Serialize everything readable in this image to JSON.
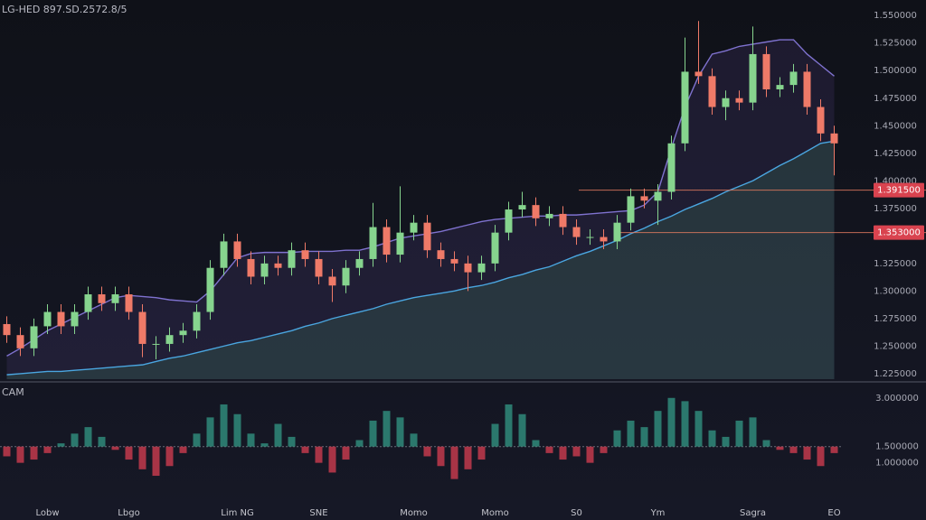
{
  "chart_data": {
    "type": "candlestick",
    "title": "LG-HED 897.SD.2572.8/5",
    "categories": [
      null,
      null,
      null,
      "Lobw",
      null,
      null,
      null,
      null,
      null,
      "Lbgo",
      null,
      null,
      null,
      null,
      null,
      null,
      null,
      "Lim NG",
      null,
      null,
      null,
      null,
      null,
      "SNE",
      null,
      null,
      null,
      null,
      null,
      null,
      "Momo",
      null,
      null,
      null,
      null,
      null,
      "Momo",
      null,
      null,
      null,
      null,
      null,
      "S0",
      null,
      null,
      null,
      null,
      null,
      "Ym",
      null,
      null,
      null,
      null,
      null,
      null,
      "Sagra",
      null,
      null,
      null,
      null,
      null,
      "EO"
    ],
    "open": [
      1.27,
      1.26,
      1.248,
      1.268,
      1.281,
      1.268,
      1.281,
      1.297,
      1.289,
      1.297,
      1.281,
      1.252,
      1.252,
      1.26,
      1.264,
      1.281,
      1.321,
      1.345,
      1.329,
      1.313,
      1.325,
      1.321,
      1.337,
      1.329,
      1.313,
      1.305,
      1.321,
      1.329,
      1.358,
      1.333,
      1.353,
      1.362,
      1.337,
      1.329,
      1.325,
      1.317,
      1.325,
      1.353,
      1.374,
      1.378,
      1.366,
      1.37,
      1.358,
      1.349,
      1.349,
      1.345,
      1.362,
      1.386,
      1.382,
      1.39,
      1.434,
      1.499,
      1.495,
      1.467,
      1.475,
      1.471,
      1.515,
      1.483,
      1.487,
      1.499,
      1.467,
      1.443
    ],
    "high": [
      1.277,
      1.267,
      1.275,
      1.288,
      1.288,
      1.288,
      1.304,
      1.304,
      1.304,
      1.304,
      1.288,
      1.259,
      1.267,
      1.271,
      1.288,
      1.328,
      1.352,
      1.352,
      1.336,
      1.332,
      1.332,
      1.344,
      1.344,
      1.336,
      1.32,
      1.328,
      1.336,
      1.38,
      1.365,
      1.395,
      1.369,
      1.369,
      1.344,
      1.336,
      1.332,
      1.332,
      1.36,
      1.381,
      1.39,
      1.385,
      1.377,
      1.377,
      1.365,
      1.356,
      1.356,
      1.369,
      1.393,
      1.393,
      1.397,
      1.441,
      1.53,
      1.545,
      1.502,
      1.482,
      1.482,
      1.54,
      1.522,
      1.494,
      1.506,
      1.506,
      1.474,
      1.45
    ],
    "low": [
      1.253,
      1.241,
      1.241,
      1.261,
      1.261,
      1.261,
      1.274,
      1.282,
      1.282,
      1.274,
      1.24,
      1.238,
      1.245,
      1.253,
      1.257,
      1.274,
      1.314,
      1.322,
      1.306,
      1.306,
      1.314,
      1.314,
      1.322,
      1.306,
      1.29,
      1.298,
      1.314,
      1.322,
      1.326,
      1.326,
      1.346,
      1.33,
      1.322,
      1.318,
      1.3,
      1.31,
      1.318,
      1.346,
      1.367,
      1.359,
      1.359,
      1.351,
      1.342,
      1.342,
      1.338,
      1.338,
      1.355,
      1.375,
      1.36,
      1.383,
      1.427,
      1.488,
      1.46,
      1.455,
      1.464,
      1.464,
      1.476,
      1.476,
      1.48,
      1.46,
      1.436,
      1.405
    ],
    "close": [
      1.26,
      1.248,
      1.268,
      1.281,
      1.268,
      1.281,
      1.297,
      1.289,
      1.297,
      1.281,
      1.252,
      1.252,
      1.26,
      1.264,
      1.281,
      1.321,
      1.345,
      1.329,
      1.313,
      1.325,
      1.321,
      1.337,
      1.329,
      1.313,
      1.305,
      1.321,
      1.329,
      1.358,
      1.333,
      1.353,
      1.362,
      1.337,
      1.329,
      1.325,
      1.317,
      1.325,
      1.353,
      1.374,
      1.378,
      1.366,
      1.37,
      1.358,
      1.349,
      1.349,
      1.345,
      1.362,
      1.386,
      1.382,
      1.39,
      1.434,
      1.499,
      1.495,
      1.467,
      1.475,
      1.471,
      1.515,
      1.483,
      1.487,
      1.499,
      1.467,
      1.443,
      1.434
    ],
    "up_color": "#86d48e",
    "down_color": "#ef7a68",
    "series": [
      {
        "color": "#7f72cf",
        "fill": "rgba(95,70,150,0.18)",
        "values": [
          1.241,
          1.248,
          1.256,
          1.264,
          1.27,
          1.276,
          1.282,
          1.288,
          1.294,
          1.296,
          1.295,
          1.294,
          1.292,
          1.291,
          1.29,
          1.3,
          1.315,
          1.33,
          1.334,
          1.335,
          1.335,
          1.335,
          1.336,
          1.336,
          1.336,
          1.337,
          1.337,
          1.34,
          1.344,
          1.348,
          1.35,
          1.352,
          1.354,
          1.357,
          1.36,
          1.363,
          1.365,
          1.366,
          1.367,
          1.368,
          1.368,
          1.369,
          1.369,
          1.37,
          1.371,
          1.372,
          1.373,
          1.378,
          1.39,
          1.43,
          1.467,
          1.495,
          1.515,
          1.518,
          1.522,
          1.524,
          1.526,
          1.528,
          1.528,
          1.515,
          1.505,
          1.495
        ]
      },
      {
        "color": "#4aa6e0",
        "fill": "rgba(60,120,90,0.28)",
        "values": [
          1.224,
          1.225,
          1.226,
          1.227,
          1.227,
          1.228,
          1.229,
          1.23,
          1.231,
          1.232,
          1.233,
          1.236,
          1.239,
          1.241,
          1.244,
          1.247,
          1.25,
          1.253,
          1.255,
          1.258,
          1.261,
          1.264,
          1.268,
          1.271,
          1.275,
          1.278,
          1.281,
          1.284,
          1.288,
          1.291,
          1.294,
          1.296,
          1.298,
          1.3,
          1.303,
          1.305,
          1.308,
          1.312,
          1.315,
          1.319,
          1.322,
          1.327,
          1.332,
          1.336,
          1.341,
          1.346,
          1.352,
          1.357,
          1.363,
          1.368,
          1.374,
          1.379,
          1.384,
          1.39,
          1.395,
          1.4,
          1.407,
          1.414,
          1.42,
          1.427,
          1.434,
          1.436
        ]
      }
    ],
    "price_lines": [
      {
        "value": 1.3915,
        "label": "1.391500",
        "color": "#e07a5f"
      },
      {
        "value": 1.353,
        "label": "1.353000",
        "color": "#e07a5f"
      }
    ],
    "ylim": [
      1.22,
      1.56
    ],
    "yticks": [
      {
        "value": 1.55,
        "label": "1.550000"
      },
      {
        "value": 1.525,
        "label": "1.525000"
      },
      {
        "value": 1.5,
        "label": "1.500000"
      },
      {
        "value": 1.475,
        "label": "1.475000"
      },
      {
        "value": 1.45,
        "label": "1.450000"
      },
      {
        "value": 1.425,
        "label": "1.425000"
      },
      {
        "value": 1.4,
        "label": "1.400000"
      },
      {
        "value": 1.375,
        "label": "1.375000"
      },
      {
        "value": 1.325,
        "label": "1.325000"
      },
      {
        "value": 1.3,
        "label": "1.300000"
      },
      {
        "value": 1.275,
        "label": "1.275000"
      },
      {
        "value": 1.25,
        "label": "1.250000"
      },
      {
        "value": 1.225,
        "label": "1.225000"
      }
    ],
    "grid": false,
    "indicator": {
      "type": "histogram",
      "label": "CAM",
      "baseline": 1.5,
      "up_color": "#2f8a7a",
      "down_color": "#c23a4c",
      "ylim": [
        0.1,
        3.3
      ],
      "yticks": [
        {
          "value": 3,
          "label": "3.000000"
        },
        {
          "value": 1.5,
          "label": "1.500000"
        },
        {
          "value": 1,
          "label": "1.000000"
        }
      ],
      "values": [
        1.2,
        1.0,
        1.1,
        1.3,
        1.6,
        1.9,
        2.1,
        1.8,
        1.4,
        1.1,
        0.8,
        0.6,
        0.9,
        1.3,
        1.9,
        2.4,
        2.8,
        2.5,
        1.9,
        1.6,
        2.2,
        1.8,
        1.3,
        1.0,
        0.7,
        1.1,
        1.7,
        2.3,
        2.6,
        2.4,
        1.9,
        1.2,
        0.9,
        0.5,
        0.8,
        1.1,
        2.2,
        2.8,
        2.5,
        1.7,
        1.3,
        1.1,
        1.2,
        1.0,
        1.3,
        2.0,
        2.3,
        2.1,
        2.6,
        3.0,
        2.9,
        2.6,
        2.0,
        1.8,
        2.3,
        2.4,
        1.7,
        1.4,
        1.3,
        1.1,
        0.9,
        1.3
      ]
    }
  }
}
